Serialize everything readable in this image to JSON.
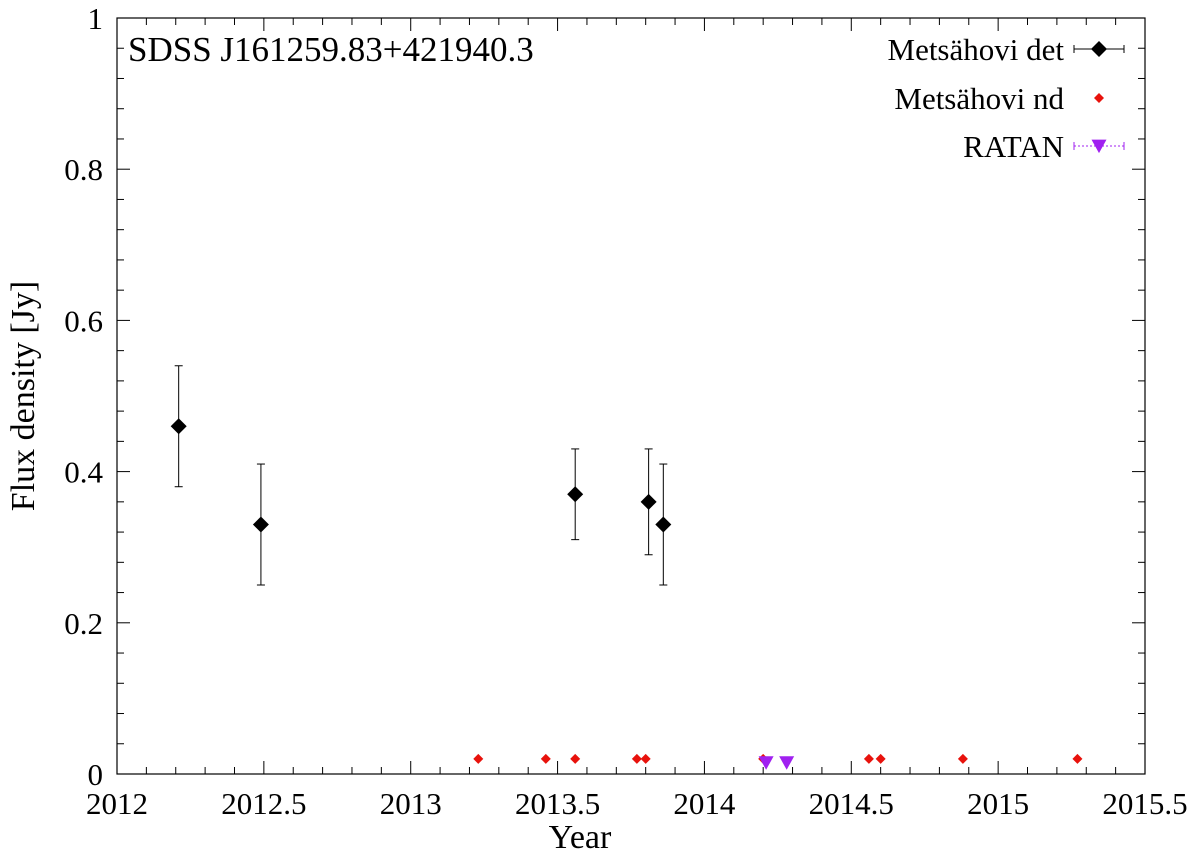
{
  "chart_data": {
    "type": "scatter",
    "title": "SDSS J161259.83+421940.3",
    "xlabel": "Year",
    "ylabel": "Flux density [Jy]",
    "xlim": [
      2012,
      2015.5
    ],
    "ylim": [
      0,
      1
    ],
    "xticks": [
      2012,
      2012.5,
      2013,
      2013.5,
      2014,
      2014.5,
      2015,
      2015.5
    ],
    "xtick_labels": [
      "2012",
      "2012.5",
      "2013",
      "2013.5",
      "2014",
      "2014.5",
      "2015",
      "2015.5"
    ],
    "yticks": [
      0,
      0.2,
      0.4,
      0.6,
      0.8,
      1
    ],
    "ytick_labels": [
      "0",
      "0.2",
      "0.4",
      "0.6",
      "0.8",
      "1"
    ],
    "grid": false,
    "legend_position": "top-right",
    "series": [
      {
        "name": "Metsähovi det",
        "marker": "diamond",
        "color": "#000000",
        "error_bars": true,
        "points": [
          {
            "x": 2012.21,
            "y": 0.46,
            "ylow": 0.38,
            "yhigh": 0.54
          },
          {
            "x": 2012.49,
            "y": 0.33,
            "ylow": 0.25,
            "yhigh": 0.41
          },
          {
            "x": 2013.56,
            "y": 0.37,
            "ylow": 0.31,
            "yhigh": 0.43
          },
          {
            "x": 2013.81,
            "y": 0.36,
            "ylow": 0.29,
            "yhigh": 0.43
          },
          {
            "x": 2013.86,
            "y": 0.33,
            "ylow": 0.25,
            "yhigh": 0.41
          }
        ]
      },
      {
        "name": "Metsähovi nd",
        "marker": "small-diamond",
        "color": "#e8120c",
        "error_bars": false,
        "points": [
          {
            "x": 2013.23,
            "y": 0.02
          },
          {
            "x": 2013.46,
            "y": 0.02
          },
          {
            "x": 2013.56,
            "y": 0.02
          },
          {
            "x": 2013.77,
            "y": 0.02
          },
          {
            "x": 2013.8,
            "y": 0.02
          },
          {
            "x": 2014.2,
            "y": 0.02
          },
          {
            "x": 2014.56,
            "y": 0.02
          },
          {
            "x": 2014.6,
            "y": 0.02
          },
          {
            "x": 2014.88,
            "y": 0.02
          },
          {
            "x": 2015.27,
            "y": 0.02
          }
        ]
      },
      {
        "name": "RATAN",
        "marker": "triangle-down",
        "color": "#a020f0",
        "error_bars": false,
        "points": [
          {
            "x": 2014.21,
            "y": 0.015
          },
          {
            "x": 2014.28,
            "y": 0.015
          }
        ]
      }
    ]
  }
}
